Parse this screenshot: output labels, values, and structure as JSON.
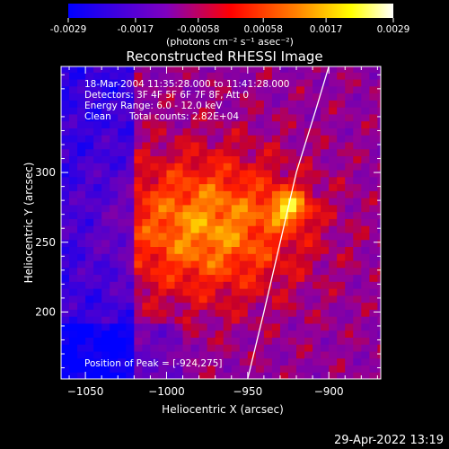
{
  "colorbar": {
    "tick_labels": [
      "-0.0029",
      "-0.0017",
      "-0.00058",
      "0.00058",
      "0.0017",
      "0.0029"
    ],
    "tick_values": [
      -0.0029,
      -0.0017,
      -0.00058,
      0.00058,
      0.0017,
      0.0029
    ],
    "range": [
      -0.0029,
      0.0029
    ],
    "units_label": "(photons cm⁻² s⁻¹ asec⁻²)",
    "colors": [
      "#0000ff",
      "#7f00c0",
      "#ff0000",
      "#ff8000",
      "#ffff00",
      "#ffffff"
    ]
  },
  "chart_data": {
    "type": "heatmap",
    "title": "Reconstructed RHESSI Image",
    "xlabel": "Heliocentric X (arcsec)",
    "ylabel": "Heliocentric Y (arcsec)",
    "xlim": [
      -1065,
      -868
    ],
    "ylim": [
      152,
      376
    ],
    "x_ticks": [
      -1050,
      -1000,
      -950,
      -900
    ],
    "y_ticks": [
      200,
      250,
      300
    ],
    "x_tick_labels": [
      "−1050",
      "−1000",
      "−950",
      "−900"
    ],
    "y_tick_labels": [
      "200",
      "250",
      "300"
    ],
    "grid": false,
    "peak": {
      "x": -924,
      "y": 275
    },
    "limb_line": [
      [
        -950,
        152
      ],
      [
        -940,
        200
      ],
      [
        -930,
        250
      ],
      [
        -920,
        300
      ],
      [
        -908,
        345
      ],
      [
        -900,
        376
      ]
    ],
    "annotations": {
      "time": "18-Mar-2004 11:35:28.000 to 11:41:28.000",
      "detectors": "Detectors: 3F 4F 5F 6F 7F 8F, Att 0",
      "energy": "Energy Range: 6.0 - 12.0 keV",
      "method": "Clean",
      "counts": "Total counts: 2.82E+04",
      "peak_text": "Position of Peak = [-924,275]"
    }
  },
  "footer": {
    "timestamp": "29-Apr-2022 13:19"
  }
}
